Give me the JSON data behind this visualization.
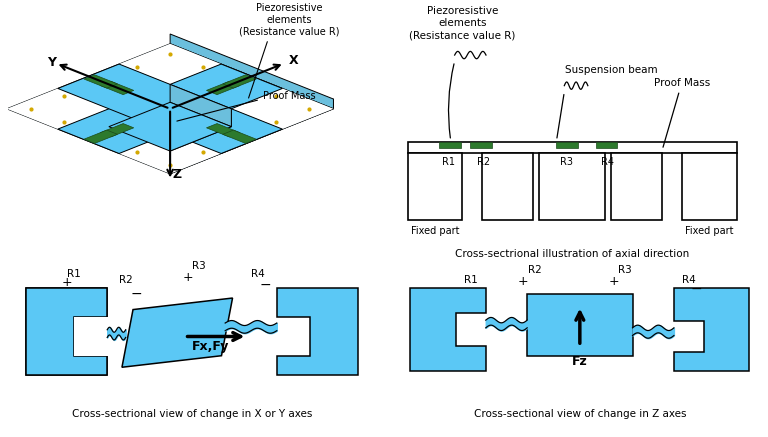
{
  "background_color": "#ffffff",
  "blue": "#5bc8f5",
  "green": "#2d7a2d",
  "black": "#000000",
  "panel2_caption": "Cross-sectrional illustration of axial direction",
  "panel3_caption": "Cross-sectrional view of change in X or Y axes",
  "panel4_caption": "Cross-sectional view of change in Z axes"
}
